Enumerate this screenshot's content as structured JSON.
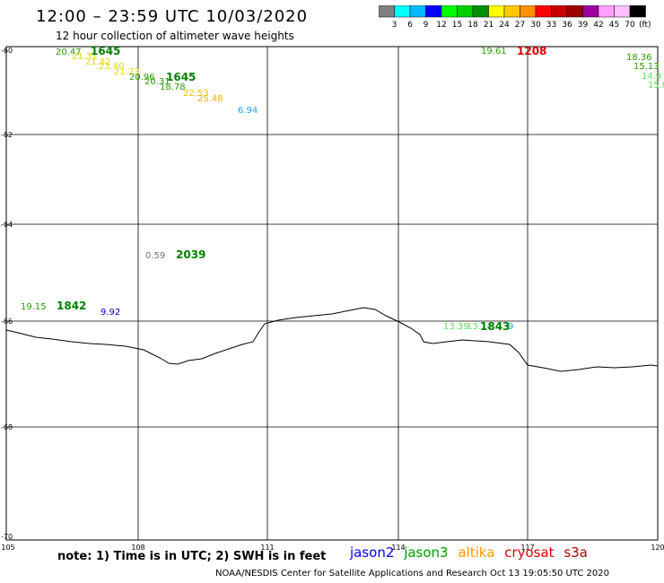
{
  "header": {
    "title": "12:00 – 23:59 UTC 10/03/2020",
    "subtitle": "12 hour collection of altimeter wave heights"
  },
  "colorbar": {
    "colors": [
      "#808080",
      "#00ffff",
      "#00b8ff",
      "#0000ff",
      "#00ff00",
      "#00d000",
      "#009000",
      "#ffff00",
      "#ffc800",
      "#ff9000",
      "#ff0000",
      "#c80000",
      "#a00000",
      "#a000a0",
      "#ffa0ff",
      "#ffc0ff",
      "#000000"
    ],
    "labels": [
      "3",
      "6",
      "9",
      "12",
      "15",
      "18",
      "21",
      "24",
      "27",
      "30",
      "33",
      "36",
      "39",
      "42",
      "45",
      "70"
    ],
    "units": "(ft)"
  },
  "axes": {
    "lat_labels": [
      "-60",
      "-62",
      "-64",
      "-66",
      "-68",
      "-70"
    ],
    "lon_labels": [
      "105",
      "108",
      "111",
      "114",
      "117",
      "120"
    ]
  },
  "observations": [
    {
      "text": "20.47",
      "color": "#2a9d00"
    },
    {
      "text": "21.31",
      "color": "#e6d800"
    },
    {
      "text": "21.82",
      "color": "#e6d800"
    },
    {
      "text": "23.40",
      "color": "#e6d800"
    },
    {
      "text": "21.23",
      "color": "#e6d800"
    },
    {
      "text": "20.96",
      "color": "#2a9d00"
    },
    {
      "text": "20.31",
      "color": "#2a9d00"
    },
    {
      "text": "18.78",
      "color": "#2a9d00"
    },
    {
      "text": "22.53",
      "color": "#e6c000"
    },
    {
      "text": "25.48",
      "color": "#f0b000"
    },
    {
      "text": "6.94",
      "color": "#20a8e0"
    },
    {
      "text": "0.59",
      "color": "#707070"
    },
    {
      "text": "19.15",
      "color": "#2a9d00"
    },
    {
      "text": "9.92",
      "color": "#0000cc"
    },
    {
      "text": "19.61",
      "color": "#2a9d00"
    },
    {
      "text": "18.36",
      "color": "#2a9d00"
    },
    {
      "text": "15.13",
      "color": "#2a9d00"
    },
    {
      "text": "14.9",
      "color": "#60e060"
    },
    {
      "text": "15.0",
      "color": "#60e060"
    },
    {
      "text": "13.39",
      "color": "#60e060"
    },
    {
      "text": "13.14",
      "color": "#60e060"
    },
    {
      "text": "9",
      "color": "#20a8e0"
    }
  ],
  "times": [
    {
      "text": "1645",
      "color": "#008000"
    },
    {
      "text": "1645",
      "color": "#008000"
    },
    {
      "text": "2039",
      "color": "#008000"
    },
    {
      "text": "1842",
      "color": "#008000"
    },
    {
      "text": "1208",
      "color": "#e00000"
    },
    {
      "text": "1843",
      "color": "#008000"
    }
  ],
  "note": "note:  1) Time is in UTC;  2) SWH is in feet",
  "legend": [
    {
      "name": "jason2",
      "color": "#0000ff"
    },
    {
      "name": "jason3",
      "color": "#009900"
    },
    {
      "name": "altika",
      "color": "#ff9900"
    },
    {
      "name": "cryosat",
      "color": "#dd0000"
    },
    {
      "name": "s3a",
      "color": "#aa0000"
    }
  ],
  "footer": "NOAA/NESDIS Center for Satellite Applications and Research     Oct 13 19:05:50 UTC 2020"
}
